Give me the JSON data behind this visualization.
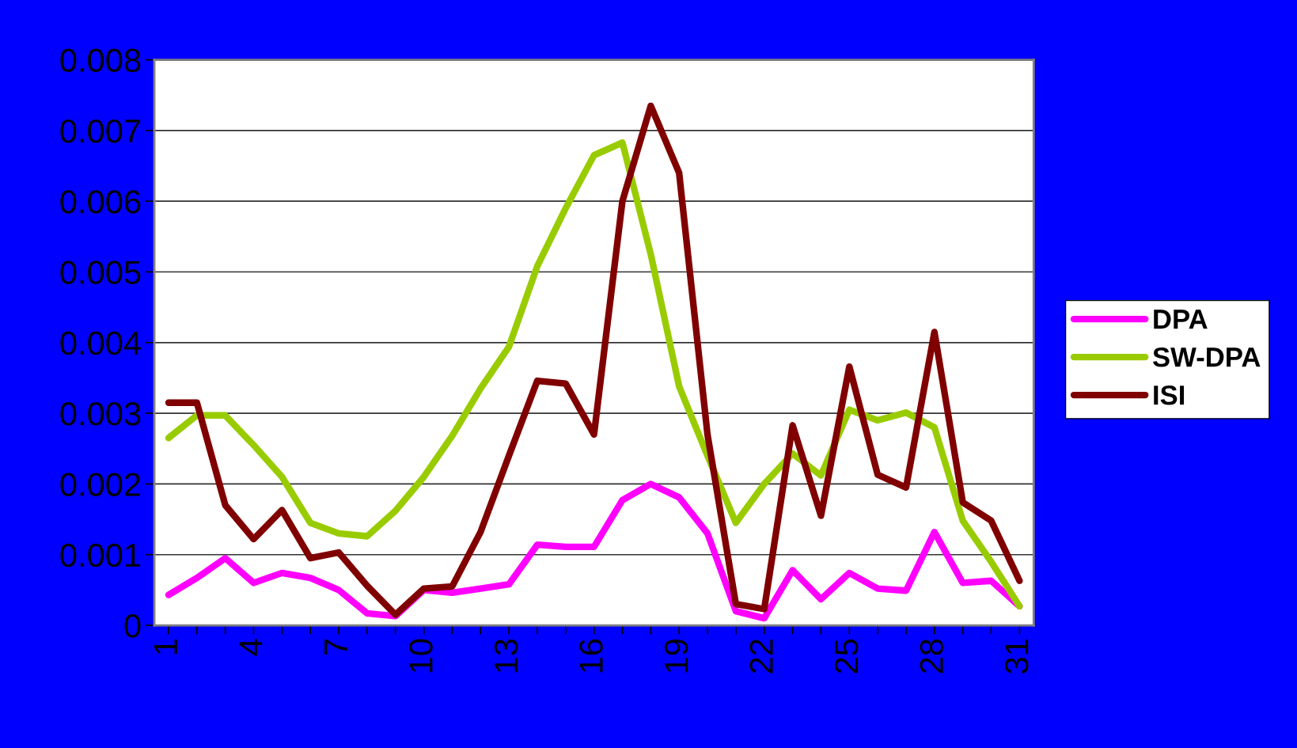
{
  "chart_data": {
    "type": "line",
    "categories": [
      "1",
      null,
      null,
      "4",
      null,
      null,
      "7",
      null,
      null,
      "10",
      null,
      null,
      "13",
      null,
      null,
      "16",
      null,
      null,
      "19",
      null,
      null,
      "22",
      null,
      null,
      "25",
      null,
      null,
      "28",
      null,
      null,
      "31"
    ],
    "series": [
      {
        "name": "DPA",
        "color": "#ff00ff",
        "values": [
          0.00043,
          0.00067,
          0.00095,
          0.0006,
          0.00074,
          0.00067,
          0.0005,
          0.00017,
          0.00013,
          0.0005,
          0.00046,
          0.00052,
          0.00058,
          0.00114,
          0.00111,
          0.00111,
          0.00177,
          0.002,
          0.00181,
          0.0013,
          0.0002,
          0.0001,
          0.00078,
          0.00037,
          0.00074,
          0.00052,
          0.00049,
          0.00132,
          0.0006,
          0.00063,
          0.00027
        ]
      },
      {
        "name": "SW-DPA",
        "color": "#99cc00",
        "values": [
          0.00265,
          0.00297,
          0.00297,
          0.00255,
          0.0021,
          0.00145,
          0.0013,
          0.00126,
          0.00162,
          0.0021,
          0.00268,
          0.00335,
          0.00394,
          0.00508,
          0.0059,
          0.00665,
          0.00683,
          0.00525,
          0.00338,
          0.0024,
          0.00145,
          0.002,
          0.00243,
          0.00212,
          0.00305,
          0.0029,
          0.00301,
          0.0028,
          0.00148,
          0.0009,
          0.00027
        ]
      },
      {
        "name": "ISI",
        "color": "#800000",
        "values": [
          0.00315,
          0.00315,
          0.0017,
          0.00122,
          0.00163,
          0.00095,
          0.00103,
          0.00056,
          0.00015,
          0.00052,
          0.00055,
          0.00132,
          0.0024,
          0.00346,
          0.00342,
          0.0027,
          0.006,
          0.00735,
          0.0064,
          0.0027,
          0.0003,
          0.00023,
          0.00283,
          0.00155,
          0.00366,
          0.00213,
          0.00195,
          0.00415,
          0.00174,
          0.00148,
          0.00063
        ]
      }
    ],
    "ylim": [
      0,
      0.008
    ],
    "yticks": [
      0,
      0.001,
      0.002,
      0.003,
      0.004,
      0.005,
      0.006,
      0.007,
      0.008
    ],
    "grid": "y",
    "legend": "right",
    "line_style": "solid",
    "marker": "none"
  }
}
